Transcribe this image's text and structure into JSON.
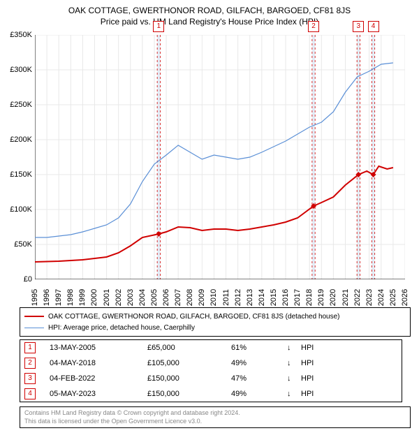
{
  "title": {
    "line1": "OAK COTTAGE, GWERTHONOR ROAD, GILFACH, BARGOED, CF81 8JS",
    "line2": "Price paid vs. HM Land Registry's House Price Index (HPI)"
  },
  "chart": {
    "type": "line",
    "background_color": "#ffffff",
    "grid_color": "#e8e8e8",
    "x_axis": {
      "min": 1995,
      "max": 2026,
      "tick_step": 1,
      "labels": [
        "1995",
        "1996",
        "1997",
        "1998",
        "1999",
        "2000",
        "2001",
        "2002",
        "2003",
        "2004",
        "2005",
        "2006",
        "2007",
        "2008",
        "2009",
        "2010",
        "2011",
        "2012",
        "2013",
        "2014",
        "2015",
        "2016",
        "2017",
        "2018",
        "2019",
        "2020",
        "2021",
        "2022",
        "2023",
        "2024",
        "2025",
        "2026"
      ]
    },
    "y_axis": {
      "min": 0,
      "max": 350000,
      "tick_step": 50000,
      "labels": [
        "£0",
        "£50K",
        "£100K",
        "£150K",
        "£200K",
        "£250K",
        "£300K",
        "£350K"
      ]
    },
    "series": [
      {
        "name": "property",
        "label": "OAK COTTAGE, GWERTHONOR ROAD, GILFACH, BARGOED, CF81 8JS (detached house)",
        "color": "#d00000",
        "line_width": 2,
        "points": [
          [
            1995,
            25000
          ],
          [
            1997,
            26000
          ],
          [
            1999,
            28000
          ],
          [
            2001,
            32000
          ],
          [
            2002,
            38000
          ],
          [
            2003,
            48000
          ],
          [
            2004,
            60000
          ],
          [
            2005.37,
            65000
          ],
          [
            2006,
            68000
          ],
          [
            2007,
            75000
          ],
          [
            2008,
            74000
          ],
          [
            2009,
            70000
          ],
          [
            2010,
            72000
          ],
          [
            2011,
            72000
          ],
          [
            2012,
            70000
          ],
          [
            2013,
            72000
          ],
          [
            2014,
            75000
          ],
          [
            2015,
            78000
          ],
          [
            2016,
            82000
          ],
          [
            2017,
            88000
          ],
          [
            2018.34,
            105000
          ],
          [
            2019,
            110000
          ],
          [
            2020,
            118000
          ],
          [
            2021,
            135000
          ],
          [
            2022.1,
            150000
          ],
          [
            2022.8,
            155000
          ],
          [
            2023.34,
            150000
          ],
          [
            2023.8,
            162000
          ],
          [
            2024.5,
            158000
          ],
          [
            2025,
            160000
          ]
        ],
        "markers": [
          {
            "x": 2005.37,
            "y": 65000
          },
          {
            "x": 2018.34,
            "y": 105000
          },
          {
            "x": 2022.1,
            "y": 150000
          },
          {
            "x": 2023.34,
            "y": 150000
          }
        ]
      },
      {
        "name": "hpi",
        "label": "HPI: Average price, detached house, Caerphilly",
        "color": "#5a8fd6",
        "line_width": 1.2,
        "points": [
          [
            1995,
            60000
          ],
          [
            1996,
            60000
          ],
          [
            1997,
            62000
          ],
          [
            1998,
            64000
          ],
          [
            1999,
            68000
          ],
          [
            2000,
            73000
          ],
          [
            2001,
            78000
          ],
          [
            2002,
            88000
          ],
          [
            2003,
            108000
          ],
          [
            2004,
            140000
          ],
          [
            2005,
            165000
          ],
          [
            2006,
            178000
          ],
          [
            2007,
            192000
          ],
          [
            2008,
            182000
          ],
          [
            2009,
            172000
          ],
          [
            2010,
            178000
          ],
          [
            2011,
            175000
          ],
          [
            2012,
            172000
          ],
          [
            2013,
            175000
          ],
          [
            2014,
            182000
          ],
          [
            2015,
            190000
          ],
          [
            2016,
            198000
          ],
          [
            2017,
            208000
          ],
          [
            2018,
            218000
          ],
          [
            2019,
            225000
          ],
          [
            2020,
            240000
          ],
          [
            2021,
            268000
          ],
          [
            2022,
            290000
          ],
          [
            2023,
            298000
          ],
          [
            2024,
            308000
          ],
          [
            2025,
            310000
          ]
        ]
      }
    ],
    "event_bands": [
      {
        "x": 2005.37,
        "label": "1",
        "color": "#d00000"
      },
      {
        "x": 2018.34,
        "label": "2",
        "color": "#d00000"
      },
      {
        "x": 2022.1,
        "label": "3",
        "color": "#d00000"
      },
      {
        "x": 2023.34,
        "label": "4",
        "color": "#d00000"
      }
    ],
    "band_fill": "#e3edf7",
    "band_width_years": 0.25
  },
  "legend": {
    "rows": [
      {
        "color": "#d00000",
        "width": 2,
        "label": "OAK COTTAGE, GWERTHONOR ROAD, GILFACH, BARGOED, CF81 8JS (detached house)"
      },
      {
        "color": "#5a8fd6",
        "width": 1.2,
        "label": "HPI: Average price, detached house, Caerphilly"
      }
    ]
  },
  "table": {
    "rows": [
      {
        "n": "1",
        "date": "13-MAY-2005",
        "price": "£65,000",
        "pct": "61%",
        "arrow": "↓",
        "ref": "HPI"
      },
      {
        "n": "2",
        "date": "04-MAY-2018",
        "price": "£105,000",
        "pct": "49%",
        "arrow": "↓",
        "ref": "HPI"
      },
      {
        "n": "3",
        "date": "04-FEB-2022",
        "price": "£150,000",
        "pct": "47%",
        "arrow": "↓",
        "ref": "HPI"
      },
      {
        "n": "4",
        "date": "05-MAY-2023",
        "price": "£150,000",
        "pct": "49%",
        "arrow": "↓",
        "ref": "HPI"
      }
    ],
    "marker_color": "#d00000"
  },
  "footer": {
    "line1": "Contains HM Land Registry data © Crown copyright and database right 2024.",
    "line2": "This data is licensed under the Open Government Licence v3.0."
  }
}
